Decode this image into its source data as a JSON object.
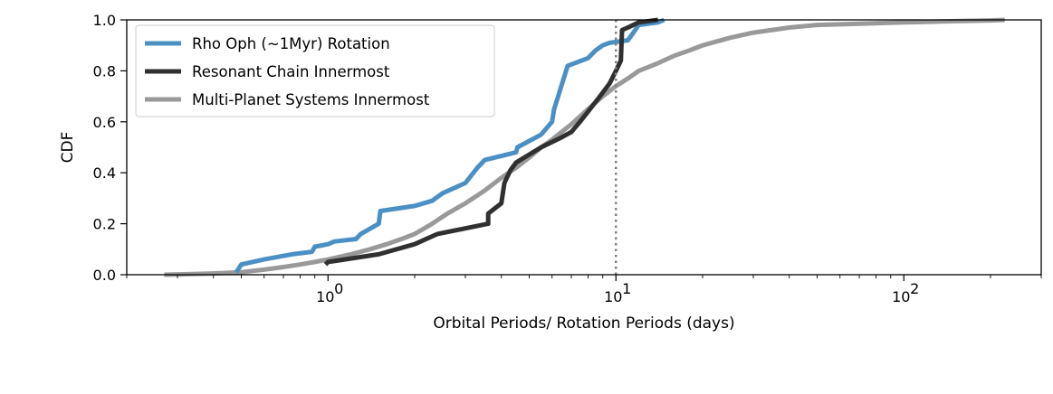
{
  "chart_data": {
    "type": "line",
    "xlabel": "Orbital Periods/ Rotation Periods (days)",
    "ylabel": "CDF",
    "xscale": "log",
    "xlim": [
      0.2,
      300
    ],
    "ylim": [
      0.0,
      1.0
    ],
    "xticks": [
      {
        "value": 1,
        "base": "10",
        "exp": "0"
      },
      {
        "value": 10,
        "base": "10",
        "exp": "1"
      },
      {
        "value": 100,
        "base": "10",
        "exp": "2"
      }
    ],
    "yticks": [
      0.0,
      0.2,
      0.4,
      0.6,
      0.8,
      1.0
    ],
    "ytick_labels": [
      "0.0",
      "0.2",
      "0.4",
      "0.6",
      "0.8",
      "1.0"
    ],
    "vline": {
      "x": 10,
      "color": "#808080",
      "style": "dotted"
    },
    "grid": false,
    "legend_position": "upper-left",
    "series": [
      {
        "name": "Rho Oph (~1Myr) Rotation",
        "color": "#4a90c4",
        "x": [
          0.48,
          0.5,
          0.6,
          0.75,
          0.88,
          0.9,
          1.0,
          1.05,
          1.25,
          1.3,
          1.5,
          1.52,
          2.0,
          2.3,
          2.5,
          3.0,
          3.2,
          3.3,
          3.5,
          4.5,
          4.55,
          5.5,
          6.0,
          6.1,
          6.3,
          6.5,
          6.8,
          8.0,
          8.5,
          9.0,
          9.5,
          11.0,
          11.5,
          12.0,
          14.0,
          14.7
        ],
        "y": [
          0.01,
          0.04,
          0.06,
          0.08,
          0.09,
          0.11,
          0.12,
          0.13,
          0.14,
          0.16,
          0.2,
          0.25,
          0.27,
          0.29,
          0.32,
          0.36,
          0.4,
          0.42,
          0.45,
          0.48,
          0.5,
          0.55,
          0.6,
          0.65,
          0.7,
          0.75,
          0.82,
          0.85,
          0.88,
          0.9,
          0.91,
          0.92,
          0.95,
          0.98,
          0.99,
          1.0
        ]
      },
      {
        "name": "Resonant Chain Innermost",
        "color": "#303030",
        "x": [
          0.98,
          1.0,
          1.5,
          2.0,
          2.4,
          3.6,
          3.6,
          4.0,
          4.1,
          4.3,
          4.5,
          5.5,
          6.5,
          7.0,
          7.5,
          8.0,
          8.8,
          9.5,
          10.0,
          10.4,
          10.5,
          11.0,
          12.0,
          14.0
        ],
        "y": [
          0.04,
          0.05,
          0.08,
          0.12,
          0.16,
          0.2,
          0.24,
          0.28,
          0.36,
          0.41,
          0.44,
          0.5,
          0.54,
          0.56,
          0.6,
          0.64,
          0.7,
          0.75,
          0.8,
          0.84,
          0.96,
          0.97,
          0.99,
          1.0
        ]
      },
      {
        "name": "Multi-Planet Systems Innermost",
        "color": "#999999",
        "x": [
          0.27,
          0.4,
          0.5,
          0.6,
          0.7,
          0.8,
          0.9,
          1.0,
          1.2,
          1.4,
          1.6,
          1.8,
          2.0,
          2.3,
          2.6,
          3.0,
          3.5,
          4.0,
          4.5,
          5.0,
          5.5,
          6.0,
          7.0,
          8.0,
          9.0,
          10.0,
          11.0,
          12.0,
          14.0,
          16.0,
          18.0,
          20.0,
          25.0,
          30.0,
          40.0,
          50.0,
          70.0,
          100.0,
          150.0,
          200.0,
          224.0
        ],
        "y": [
          0.0,
          0.005,
          0.01,
          0.02,
          0.03,
          0.04,
          0.05,
          0.06,
          0.08,
          0.1,
          0.12,
          0.14,
          0.16,
          0.2,
          0.24,
          0.28,
          0.33,
          0.38,
          0.42,
          0.46,
          0.5,
          0.53,
          0.59,
          0.65,
          0.7,
          0.74,
          0.77,
          0.8,
          0.83,
          0.86,
          0.88,
          0.9,
          0.93,
          0.95,
          0.97,
          0.98,
          0.985,
          0.99,
          0.995,
          0.998,
          1.0
        ]
      }
    ]
  }
}
